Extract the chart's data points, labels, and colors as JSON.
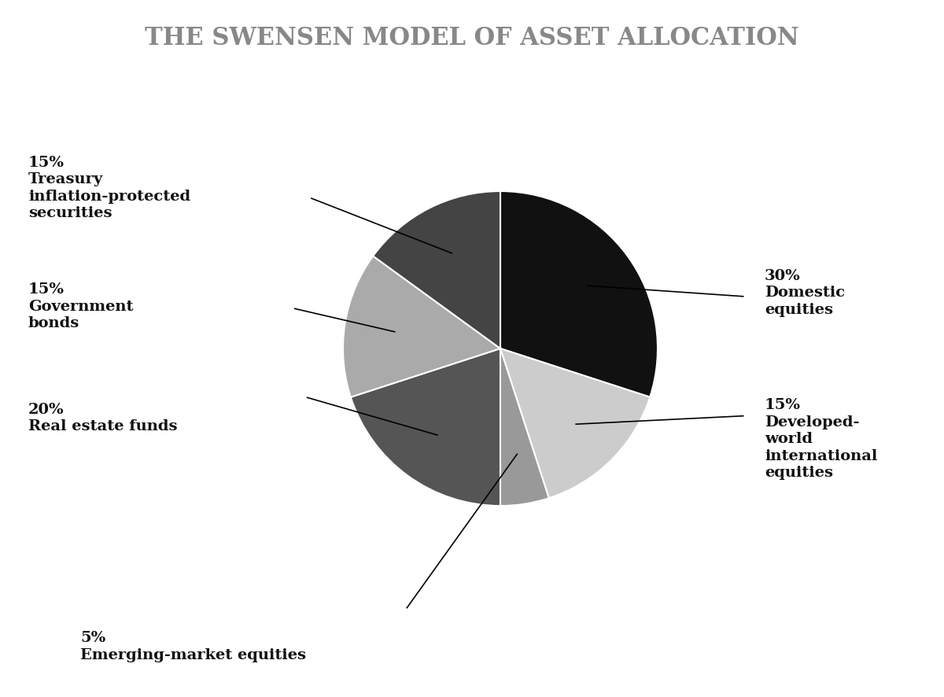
{
  "title": "THE SWENSEN MODEL OF ASSET ALLOCATION",
  "title_color": "#888888",
  "background_color": "#ffffff",
  "slices": [
    {
      "label": "Domestic\nequities",
      "pct": "30%",
      "value": 30,
      "color": "#111111"
    },
    {
      "label": "Developed-\nworld\ninternational\nequities",
      "pct": "15%",
      "value": 15,
      "color": "#cccccc"
    },
    {
      "label": "Emerging-market equities",
      "pct": "5%",
      "value": 5,
      "color": "#999999"
    },
    {
      "label": "Real estate funds",
      "pct": "20%",
      "value": 20,
      "color": "#555555"
    },
    {
      "label": "Government\nbonds",
      "pct": "15%",
      "value": 15,
      "color": "#aaaaaa"
    },
    {
      "label": "Treasury\ninflation-protected\nsecurities",
      "pct": "15%",
      "value": 15,
      "color": "#444444"
    }
  ],
  "start_angle": 90,
  "label_fontsize": 14,
  "title_fontsize": 22
}
